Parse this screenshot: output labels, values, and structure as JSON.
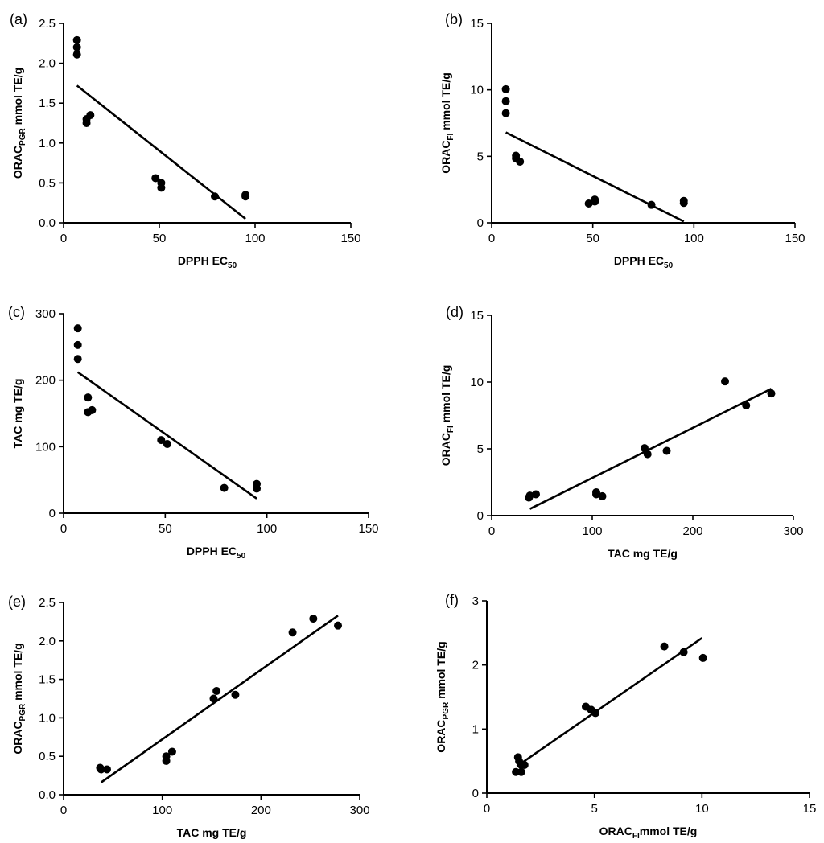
{
  "chart_data": [
    {
      "type": "scatter",
      "panel_label": "(a)",
      "xlabel": {
        "main": "DPPH EC",
        "sub": "50",
        "rest": ""
      },
      "ylabel": {
        "main": "ORAC",
        "sub": "PGR",
        "rest": " mmol TE/g"
      },
      "xlim": [
        0,
        150
      ],
      "ylim": [
        0,
        2.5
      ],
      "xticks": [
        "0",
        "50",
        "100",
        "150"
      ],
      "yticks": [
        "0.0",
        "0.5",
        "1.0",
        "1.5",
        "2.0",
        "2.5"
      ],
      "x": [
        7,
        7,
        7,
        12,
        12,
        14,
        48,
        51,
        51,
        79,
        95,
        95
      ],
      "y": [
        2.29,
        2.2,
        2.11,
        1.3,
        1.25,
        1.35,
        0.56,
        0.5,
        0.44,
        0.33,
        0.35,
        0.33
      ],
      "fit": {
        "x": [
          7,
          95
        ],
        "y": [
          1.72,
          0.05
        ]
      }
    },
    {
      "type": "scatter",
      "panel_label": "(b)",
      "xlabel": {
        "main": "DPPH EC",
        "sub": "50",
        "rest": ""
      },
      "ylabel": {
        "main": "ORAC",
        "sub": "FI",
        "rest": " mmol TE/g"
      },
      "xlim": [
        0,
        150
      ],
      "ylim": [
        0,
        15
      ],
      "xticks": [
        "0",
        "50",
        "100",
        "150"
      ],
      "yticks": [
        "0",
        "5",
        "10",
        "15"
      ],
      "x": [
        7,
        7,
        7,
        12,
        12,
        14,
        48,
        51,
        51,
        79,
        95,
        95
      ],
      "y": [
        10.05,
        9.15,
        8.25,
        5.05,
        4.85,
        4.6,
        1.45,
        1.75,
        1.6,
        1.35,
        1.65,
        1.5
      ],
      "fit": {
        "x": [
          7,
          95
        ],
        "y": [
          6.8,
          0.1
        ]
      }
    },
    {
      "type": "scatter",
      "panel_label": "(c)",
      "xlabel": {
        "main": "DPPH EC",
        "sub": "50",
        "rest": ""
      },
      "ylabel": {
        "main": "TAC mg TE/g",
        "sub": "",
        "rest": ""
      },
      "xlim": [
        0,
        150
      ],
      "ylim": [
        0,
        300
      ],
      "xticks": [
        "0",
        "50",
        "100",
        "150"
      ],
      "yticks": [
        "0",
        "100",
        "200",
        "300"
      ],
      "x": [
        7,
        7,
        7,
        12,
        12,
        14,
        48,
        51,
        79,
        95,
        95
      ],
      "y": [
        278,
        253,
        232,
        174,
        152,
        155,
        110,
        104,
        38,
        44,
        37
      ],
      "fit": {
        "x": [
          7,
          95
        ],
        "y": [
          212,
          22
        ]
      }
    },
    {
      "type": "scatter",
      "panel_label": "(d)",
      "xlabel": {
        "main": "TAC mg TE/g",
        "sub": "",
        "rest": ""
      },
      "ylabel": {
        "main": "ORAC",
        "sub": "FI",
        "rest": " mmol TE/g"
      },
      "xlim": [
        0,
        300
      ],
      "ylim": [
        0,
        15
      ],
      "xticks": [
        "0",
        "100",
        "200",
        "300"
      ],
      "yticks": [
        "0",
        "5",
        "10",
        "15"
      ],
      "x": [
        37,
        38,
        44,
        104,
        104,
        110,
        152,
        155,
        174,
        232,
        253,
        278
      ],
      "y": [
        1.35,
        1.5,
        1.6,
        1.75,
        1.6,
        1.45,
        5.05,
        4.6,
        4.85,
        10.05,
        8.25,
        9.15
      ],
      "fit": {
        "x": [
          38,
          278
        ],
        "y": [
          0.5,
          9.5
        ]
      }
    },
    {
      "type": "scatter",
      "panel_label": "(e)",
      "xlabel": {
        "main": "TAC mg TE/g",
        "sub": "",
        "rest": ""
      },
      "ylabel": {
        "main": "ORAC",
        "sub": "PGR",
        "rest": " mmol TE/g"
      },
      "xlim": [
        0,
        300
      ],
      "ylim": [
        0,
        2.5
      ],
      "xticks": [
        "0",
        "100",
        "200",
        "300"
      ],
      "yticks": [
        "0.0",
        "0.5",
        "1.0",
        "1.5",
        "2.0",
        "2.5"
      ],
      "x": [
        37,
        38,
        44,
        104,
        104,
        110,
        152,
        155,
        174,
        232,
        253,
        278
      ],
      "y": [
        0.35,
        0.33,
        0.33,
        0.5,
        0.44,
        0.56,
        1.25,
        1.35,
        1.3,
        2.11,
        2.29,
        2.2
      ],
      "fit": {
        "x": [
          38,
          278
        ],
        "y": [
          0.16,
          2.33
        ]
      }
    },
    {
      "type": "scatter",
      "panel_label": "(f)",
      "xlabel": {
        "main": "ORAC",
        "sub": "FI",
        "rest": "mmol TE/g"
      },
      "ylabel": {
        "main": "ORAC",
        "sub": "PGR",
        "rest": " mmol TE/g"
      },
      "xlim": [
        0,
        15
      ],
      "ylim": [
        0,
        3
      ],
      "xticks": [
        "0",
        "5",
        "10",
        "15"
      ],
      "yticks": [
        "0",
        "1",
        "2",
        "3"
      ],
      "x": [
        1.35,
        1.45,
        1.5,
        1.6,
        1.6,
        1.75,
        4.6,
        4.85,
        5.05,
        8.25,
        9.15,
        10.05
      ],
      "y": [
        0.33,
        0.56,
        0.5,
        0.44,
        0.33,
        0.44,
        1.35,
        1.3,
        1.25,
        2.29,
        2.2,
        2.11
      ],
      "fit": {
        "x": [
          1.4,
          10.0
        ],
        "y": [
          0.42,
          2.42
        ]
      }
    }
  ]
}
